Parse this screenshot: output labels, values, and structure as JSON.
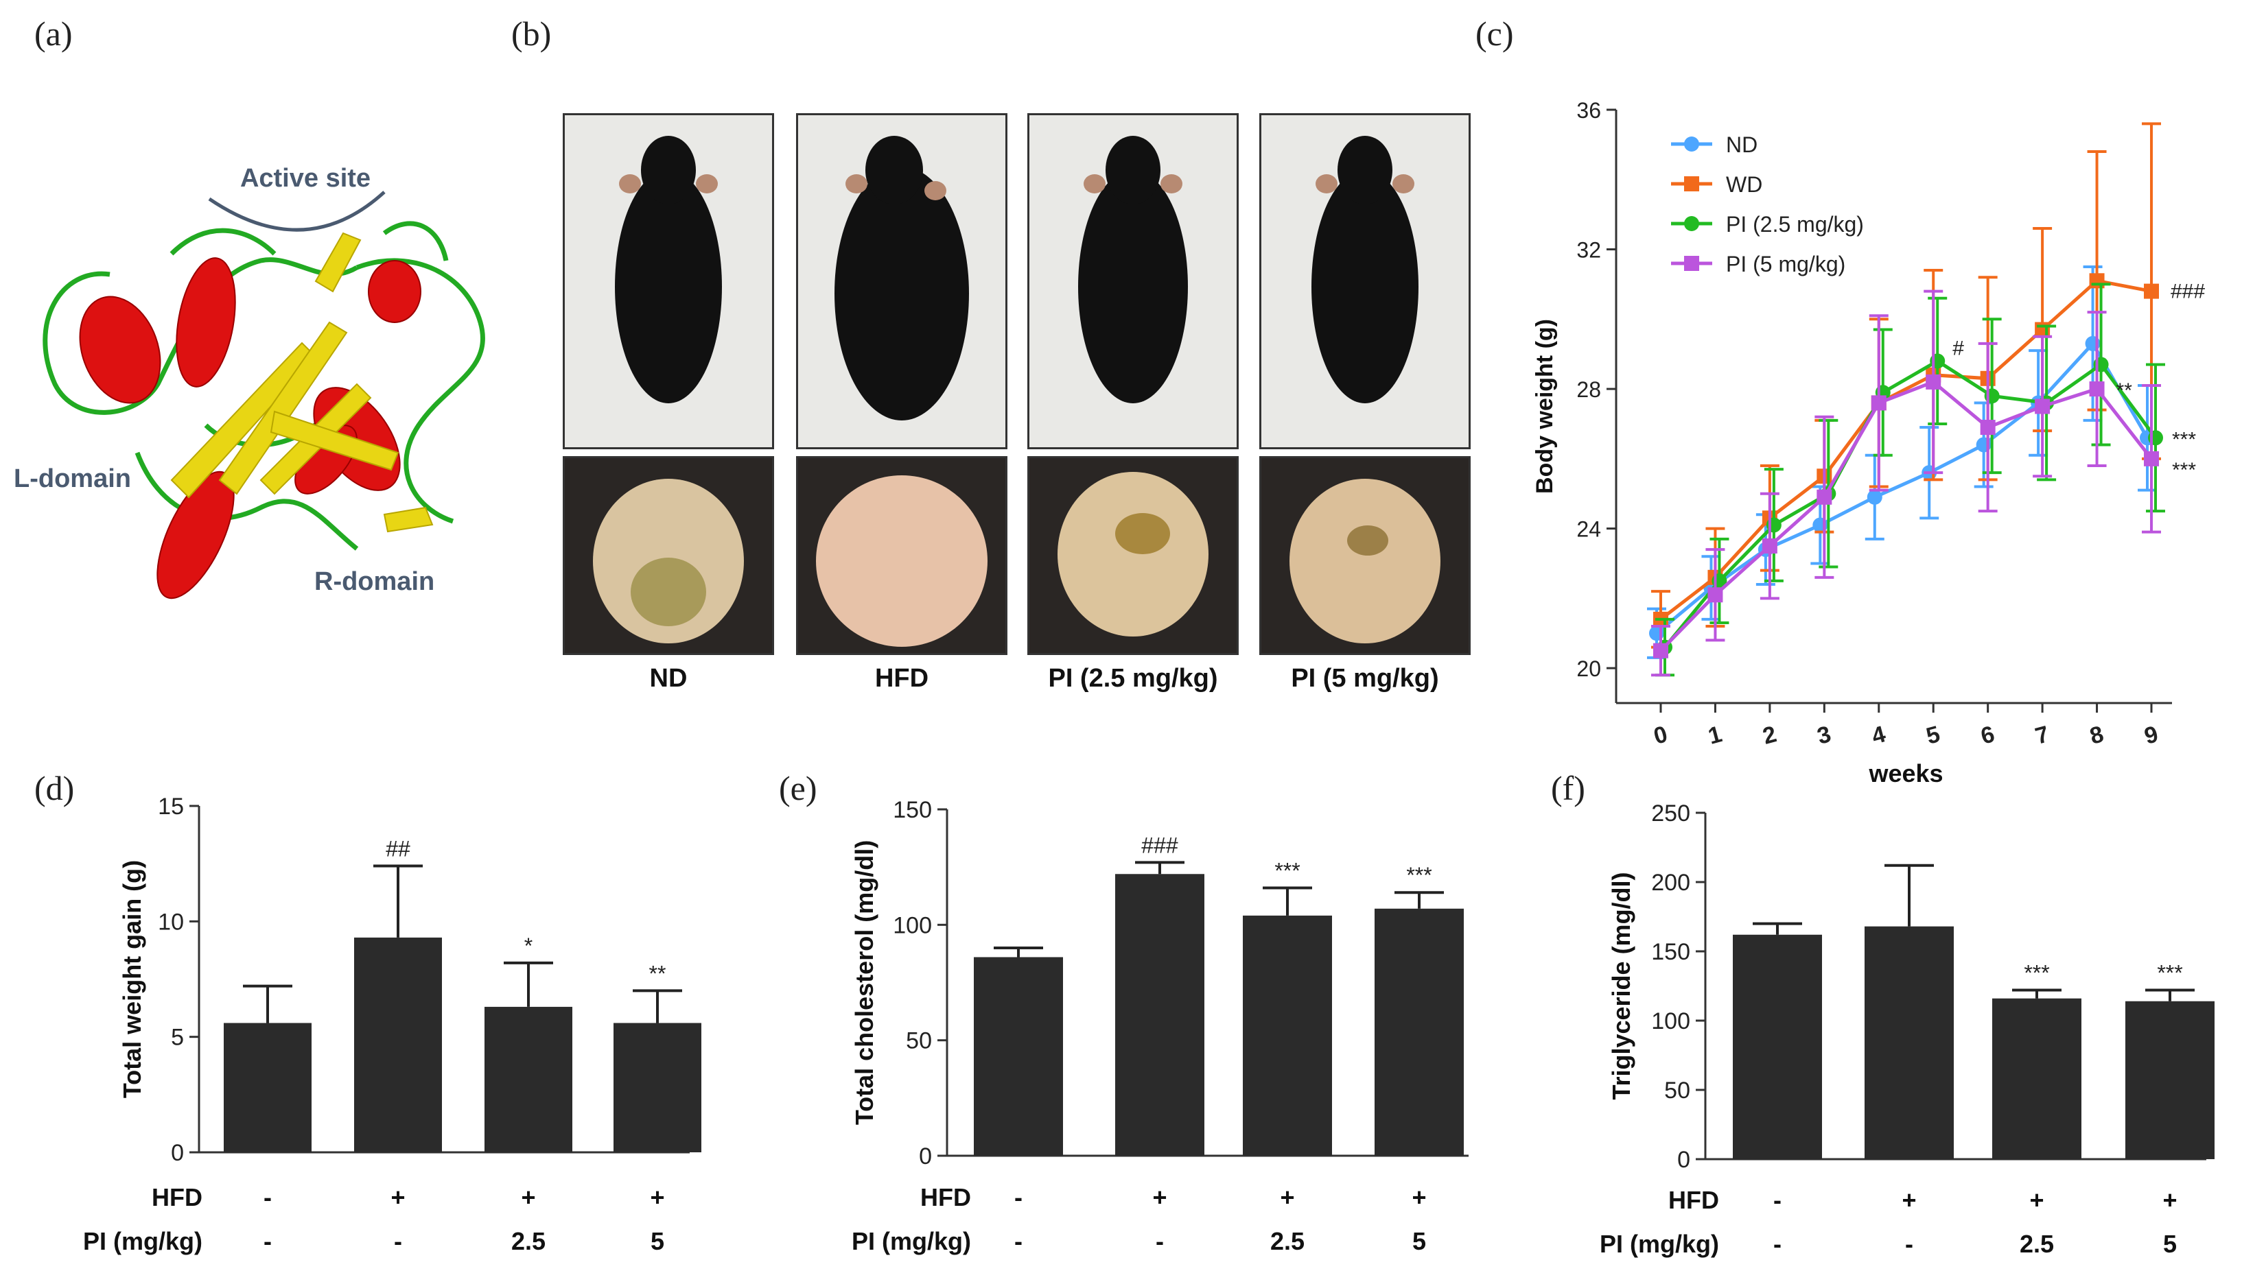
{
  "panel_labels": {
    "a": "(a)",
    "b": "(b)",
    "c": "(c)",
    "d": "(d)",
    "e": "(e)",
    "f": "(f)"
  },
  "panel_a": {
    "active_site": "Active site",
    "l_domain": "L-domain",
    "r_domain": "R-domain",
    "colors": {
      "helix": "#dd1111",
      "sheet": "#e8d614",
      "loop": "#22aa22",
      "label": "#4a5a70"
    }
  },
  "panel_b": {
    "groups": [
      "ND",
      "HFD",
      "PI (2.5 mg/kg)",
      "PI (5 mg/kg)"
    ]
  },
  "colors": {
    "ND": "#4da6ff",
    "WD": "#f26a1b",
    "PI25": "#22bb22",
    "PI5": "#bb55dd",
    "bar": "#2b2b2b"
  },
  "chart_data": [
    {
      "type": "line",
      "title": "",
      "xlabel": "weeks",
      "ylabel": "Body weight (g)",
      "x": [
        0,
        1,
        2,
        3,
        4,
        5,
        6,
        7,
        8,
        9
      ],
      "ylim": [
        19,
        36
      ],
      "yticks": [
        20,
        24,
        28,
        32,
        36
      ],
      "legend_position": "top-left",
      "series": [
        {
          "name": "ND",
          "key": "ND",
          "marker": "circle",
          "values": [
            21.0,
            22.3,
            23.4,
            24.1,
            24.9,
            25.6,
            26.4,
            27.6,
            29.3,
            26.6
          ],
          "err": [
            0.7,
            0.9,
            1.0,
            1.1,
            1.2,
            1.3,
            1.2,
            1.5,
            2.2,
            1.5
          ]
        },
        {
          "name": "WD",
          "key": "WD",
          "marker": "square",
          "values": [
            21.4,
            22.6,
            24.3,
            25.5,
            27.6,
            28.4,
            28.3,
            29.7,
            31.1,
            30.8
          ],
          "err": [
            0.8,
            1.4,
            1.5,
            1.6,
            2.4,
            3.0,
            2.9,
            2.9,
            3.7,
            4.8
          ]
        },
        {
          "name": "PI (2.5 mg/kg)",
          "key": "PI25",
          "marker": "circle",
          "values": [
            20.6,
            22.5,
            24.1,
            25.0,
            27.9,
            28.8,
            27.8,
            27.6,
            28.7,
            26.6
          ],
          "err": [
            0.8,
            1.2,
            1.6,
            2.1,
            1.8,
            1.8,
            2.2,
            2.2,
            2.3,
            2.1
          ]
        },
        {
          "name": "PI (5 mg/kg)",
          "key": "PI5",
          "marker": "square",
          "values": [
            20.5,
            22.1,
            23.5,
            24.9,
            27.6,
            28.2,
            26.9,
            27.5,
            28.0,
            26.0
          ],
          "err": [
            0.7,
            1.3,
            1.5,
            2.3,
            2.5,
            2.6,
            2.4,
            2.0,
            2.2,
            2.1
          ]
        }
      ],
      "annotations": [
        {
          "text": "#",
          "x": 5,
          "y": 28.7
        },
        {
          "text": "###",
          "x": 9,
          "y": 30.8
        },
        {
          "text": "**",
          "x": 8,
          "y": 28.0
        },
        {
          "text": "***",
          "x": 9,
          "y": 26.6
        },
        {
          "text": "***",
          "x": 9,
          "y": 26.0
        }
      ]
    },
    {
      "type": "bar",
      "ylabel": "Total weight gain (g)",
      "ylim": [
        0,
        15
      ],
      "yticks": [
        0,
        5,
        10,
        15
      ],
      "values": [
        5.6,
        9.3,
        6.3,
        5.6
      ],
      "err": [
        1.6,
        3.1,
        1.9,
        1.4
      ],
      "sig": [
        "",
        "##",
        "*",
        "**"
      ],
      "rows": [
        {
          "label": "HFD",
          "values": [
            "-",
            "+",
            "+",
            "+"
          ]
        },
        {
          "label": "PI (mg/kg)",
          "values": [
            "-",
            "-",
            "2.5",
            "5"
          ]
        }
      ]
    },
    {
      "type": "bar",
      "ylabel": "Total cholesterol (mg/dl)",
      "ylim": [
        0,
        150
      ],
      "yticks": [
        0,
        50,
        100,
        150
      ],
      "values": [
        86,
        122,
        104,
        107
      ],
      "err": [
        4,
        5,
        12,
        7
      ],
      "sig": [
        "",
        "###",
        "***",
        "***"
      ],
      "rows": [
        {
          "label": "HFD",
          "values": [
            "-",
            "+",
            "+",
            "+"
          ]
        },
        {
          "label": "PI (mg/kg)",
          "values": [
            "-",
            "-",
            "2.5",
            "5"
          ]
        }
      ]
    },
    {
      "type": "bar",
      "ylabel": "Triglyceride (mg/dl)",
      "ylim": [
        0,
        250
      ],
      "yticks": [
        0,
        50,
        100,
        150,
        200,
        250
      ],
      "values": [
        162,
        168,
        116,
        114
      ],
      "err": [
        8,
        44,
        6,
        8
      ],
      "sig": [
        "",
        "",
        "***",
        "***"
      ],
      "rows": [
        {
          "label": "HFD",
          "values": [
            "-",
            "+",
            "+",
            "+"
          ]
        },
        {
          "label": "PI (mg/kg)",
          "values": [
            "-",
            "-",
            "2.5",
            "5"
          ]
        }
      ]
    }
  ]
}
